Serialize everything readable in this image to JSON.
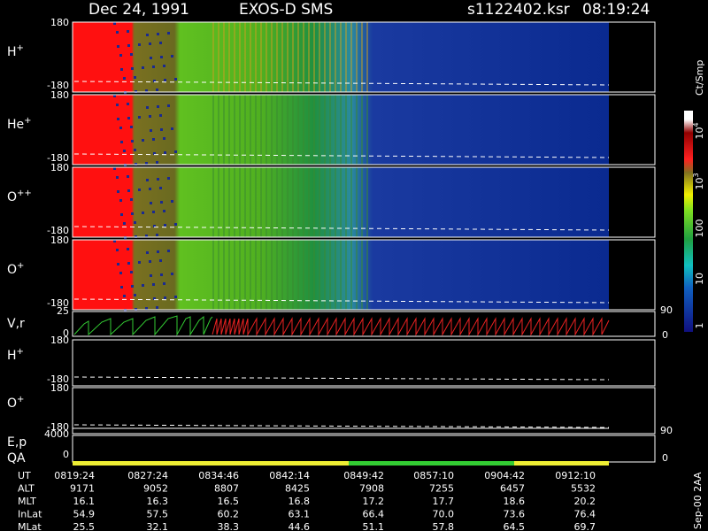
{
  "header": {
    "date": "Dec 24, 1991",
    "mission": "EXOS-D SMS",
    "file": "s1122402.ksr",
    "time": "08:19:24"
  },
  "panels": [
    {
      "ion": "H",
      "charge": "+",
      "top": "180",
      "bottom": "-180"
    },
    {
      "ion": "He",
      "charge": "+",
      "top": "180",
      "bottom": "-180"
    },
    {
      "ion": "O",
      "charge": "++",
      "top": "180",
      "bottom": "-180"
    },
    {
      "ion": "O",
      "charge": "+",
      "top": "180",
      "bottom": "-180"
    }
  ],
  "velocity_panel": {
    "label": "V,r",
    "left_top": "25",
    "left_bottom": "0",
    "right_top": "90",
    "right_bottom": "0"
  },
  "pitch_panels": [
    {
      "ion": "H",
      "charge": "+",
      "top": "180",
      "bottom": "-180"
    },
    {
      "ion": "O",
      "charge": "+",
      "top": "180",
      "bottom": "-180"
    }
  ],
  "energy_panel": {
    "label": "E,p",
    "qa_label": "QA",
    "left_top": "4000",
    "left_bottom": "0",
    "right_top": "90",
    "right_bottom": "0"
  },
  "colorbar": {
    "units": "Ct/Smp",
    "labels": [
      {
        "base": "10",
        "exp": "4"
      },
      {
        "base": "10",
        "exp": "3"
      },
      {
        "text": "100"
      },
      {
        "text": "10"
      },
      {
        "text": "1"
      }
    ]
  },
  "footer_note": "Sep-00 2AA",
  "table": {
    "rows": [
      {
        "label": "UT",
        "cells": [
          "0819:24",
          "0827:24",
          "0834:46",
          "0842:14",
          "0849:42",
          "0857:10",
          "0904:42",
          "0912:10"
        ]
      },
      {
        "label": "ALT",
        "cells": [
          "9171",
          "9052",
          "8807",
          "8425",
          "7908",
          "7255",
          "6457",
          "5532"
        ]
      },
      {
        "label": "MLT",
        "cells": [
          "16.1",
          "16.3",
          "16.5",
          "16.8",
          "17.2",
          "17.7",
          "18.6",
          "20.2"
        ]
      },
      {
        "label": "InLat",
        "cells": [
          "54.9",
          "57.5",
          "60.2",
          "63.1",
          "66.4",
          "70.0",
          "73.6",
          "76.4"
        ]
      },
      {
        "label": "MLat",
        "cells": [
          "25.5",
          "32.1",
          "38.3",
          "44.6",
          "51.1",
          "57.8",
          "64.5",
          "69.7"
        ]
      }
    ]
  }
}
